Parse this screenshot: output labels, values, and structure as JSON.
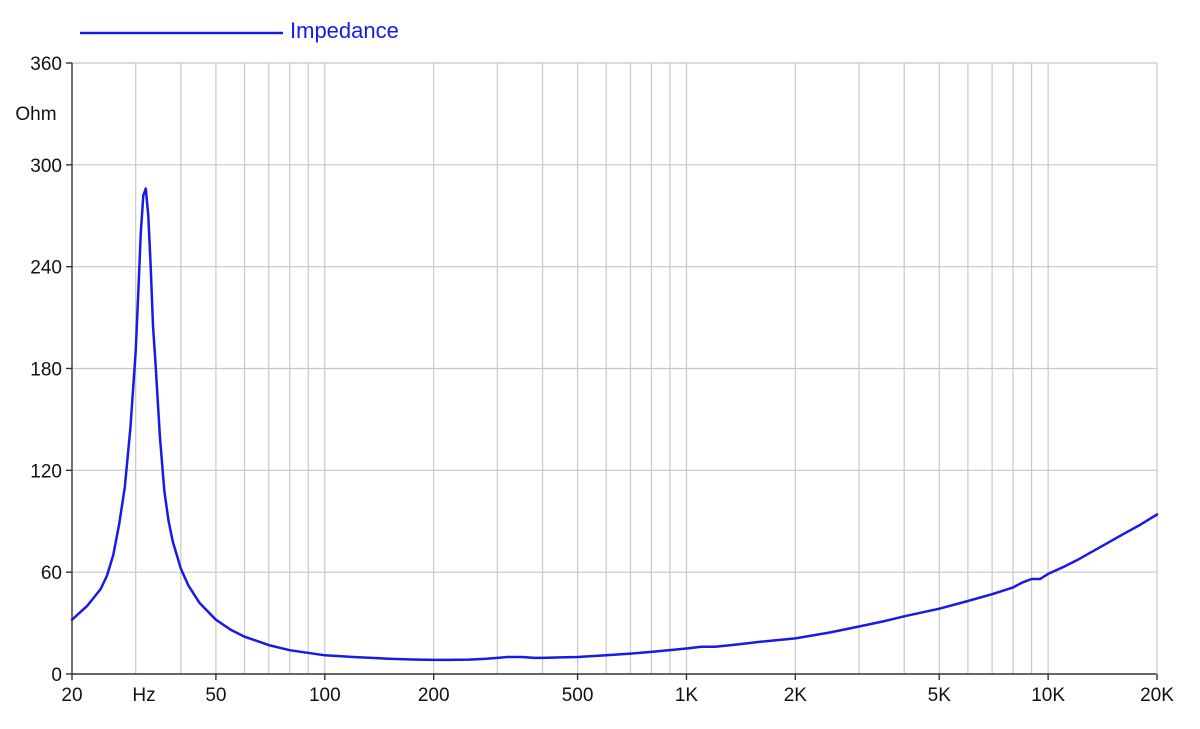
{
  "chart_data": {
    "type": "line",
    "title": "",
    "xlabel": "Hz",
    "ylabel": "Ohm",
    "x_scale": "log",
    "xlim": [
      20,
      20000
    ],
    "ylim": [
      0,
      360
    ],
    "grid": true,
    "legend": {
      "position": "top-left"
    },
    "x_ticks": [
      {
        "value": 20,
        "label": "20"
      },
      {
        "value": 50,
        "label": "50"
      },
      {
        "value": 100,
        "label": "100"
      },
      {
        "value": 200,
        "label": "200"
      },
      {
        "value": 500,
        "label": "500"
      },
      {
        "value": 1000,
        "label": "1K"
      },
      {
        "value": 2000,
        "label": "2K"
      },
      {
        "value": 5000,
        "label": "5K"
      },
      {
        "value": 10000,
        "label": "10K"
      },
      {
        "value": 20000,
        "label": "20K"
      }
    ],
    "y_ticks": [
      {
        "value": 0,
        "label": "0"
      },
      {
        "value": 60,
        "label": "60"
      },
      {
        "value": 120,
        "label": "120"
      },
      {
        "value": 180,
        "label": "180"
      },
      {
        "value": 240,
        "label": "240"
      },
      {
        "value": 300,
        "label": "300"
      },
      {
        "value": 360,
        "label": "360"
      }
    ],
    "series": [
      {
        "name": "Impedance",
        "color": "#1a1ae6",
        "x": [
          20,
          22,
          24,
          25,
          26,
          27,
          28,
          29,
          30,
          30.5,
          31,
          31.5,
          32,
          32.5,
          33,
          33.5,
          34,
          35,
          36,
          37,
          38,
          40,
          42,
          45,
          50,
          55,
          60,
          70,
          80,
          100,
          120,
          150,
          180,
          200,
          220,
          250,
          280,
          300,
          320,
          350,
          380,
          400,
          450,
          500,
          600,
          700,
          800,
          1000,
          1100,
          1200,
          1400,
          1600,
          2000,
          2500,
          3000,
          3500,
          4000,
          5000,
          6000,
          7000,
          8000,
          8500,
          9000,
          9500,
          10000,
          11000,
          12000,
          14000,
          16000,
          18000,
          20000
        ],
        "y": [
          32,
          40,
          50,
          58,
          70,
          88,
          110,
          145,
          190,
          225,
          260,
          282,
          286,
          270,
          240,
          205,
          185,
          140,
          108,
          90,
          78,
          62,
          52,
          42,
          32,
          26,
          22,
          17,
          14,
          11,
          10,
          9,
          8.5,
          8.3,
          8.3,
          8.5,
          9,
          9.5,
          10,
          10,
          9.5,
          9.5,
          9.8,
          10,
          11,
          12,
          13,
          15,
          16,
          16,
          17.5,
          19,
          21,
          24.5,
          28,
          31,
          34,
          38.5,
          43,
          47,
          51,
          54,
          56,
          56,
          59,
          63,
          67,
          75,
          82,
          88,
          94
        ]
      }
    ]
  }
}
